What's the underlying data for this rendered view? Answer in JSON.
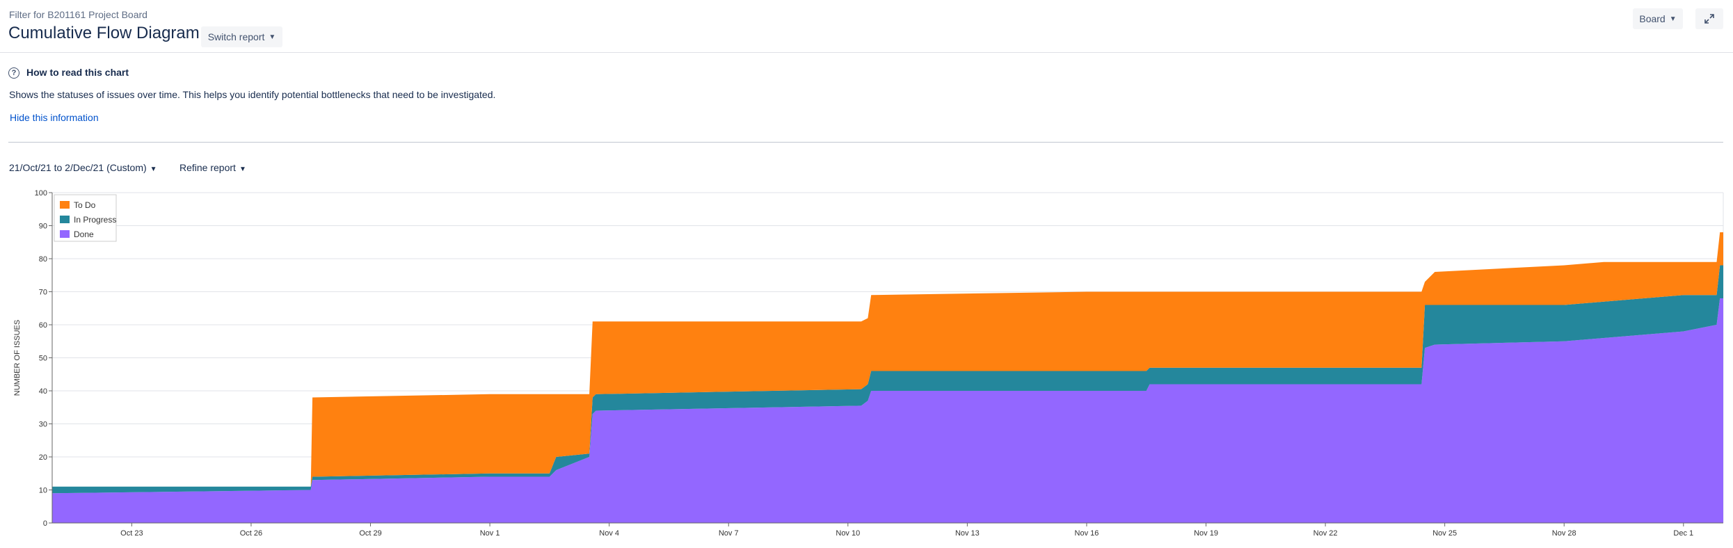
{
  "header": {
    "subtitle": "Filter for B201161 Project Board",
    "title": "Cumulative Flow Diagram",
    "switch_report": "Switch report",
    "board": "Board"
  },
  "info": {
    "heading": "How to read this chart",
    "description": "Shows the statuses of issues over time. This helps you identify potential bottlenecks that need to be investigated.",
    "hide_link": "Hide this information"
  },
  "filters": {
    "date_range": "21/Oct/21 to 2/Dec/21 (Custom)",
    "refine": "Refine report"
  },
  "icons": {
    "help": "help-icon",
    "expand": "expand-icon",
    "chevron": "chevron-down-icon"
  },
  "chart_data": {
    "type": "area",
    "stacked": true,
    "ylabel": "NUMBER OF ISSUES",
    "xlabel": "",
    "ylim": [
      0,
      100
    ],
    "yticks": [
      0,
      10,
      20,
      30,
      40,
      50,
      60,
      70,
      80,
      90,
      100
    ],
    "xlim": [
      "2021-10-21",
      "2021-12-02"
    ],
    "xticks": [
      "Oct 23",
      "Oct 26",
      "Oct 29",
      "Nov 1",
      "Nov 4",
      "Nov 7",
      "Nov 10",
      "Nov 13",
      "Nov 16",
      "Nov 19",
      "Nov 22",
      "Nov 25",
      "Nov 28",
      "Dec 1"
    ],
    "xtick_dates": [
      "2021-10-23",
      "2021-10-26",
      "2021-10-29",
      "2021-11-01",
      "2021-11-04",
      "2021-11-07",
      "2021-11-10",
      "2021-11-13",
      "2021-11-16",
      "2021-11-19",
      "2021-11-22",
      "2021-11-25",
      "2021-11-28",
      "2021-12-01"
    ],
    "grid": true,
    "legend_position": "top-left",
    "x": [
      "2021-10-21",
      "2021-10-27 12:00",
      "2021-10-27 13:00",
      "2021-11-01",
      "2021-11-02 12:00",
      "2021-11-02 16:00",
      "2021-11-03 12:00",
      "2021-11-03 14:00",
      "2021-11-03 16:00",
      "2021-11-10 08:00",
      "2021-11-10 12:00",
      "2021-11-10 14:00",
      "2021-11-16",
      "2021-11-17 12:00",
      "2021-11-17 14:00",
      "2021-11-24 10:00",
      "2021-11-24 12:00",
      "2021-11-24 18:00",
      "2021-11-28",
      "2021-11-29",
      "2021-11-30",
      "2021-12-01",
      "2021-12-01 20:00",
      "2021-12-01 22:00",
      "2021-12-02"
    ],
    "series": [
      {
        "name": "Done",
        "color": "#9367ff",
        "values": [
          9,
          10,
          13,
          14,
          14,
          16,
          20,
          33,
          34,
          35.5,
          37,
          40,
          40,
          40,
          42,
          42,
          53,
          54,
          55,
          56,
          57,
          58,
          60,
          68,
          68
        ]
      },
      {
        "name": "In Progress",
        "color": "#24879c",
        "values": [
          2,
          1,
          1,
          1,
          1,
          4,
          1,
          5,
          5,
          5,
          5,
          6,
          6,
          6,
          5,
          5,
          13,
          12,
          11,
          11,
          11,
          11,
          9,
          10,
          10
        ]
      },
      {
        "name": "To Do",
        "color": "#ff8110",
        "values": [
          0,
          0,
          24,
          24,
          24,
          19,
          18,
          23,
          22,
          20.5,
          20,
          23,
          24,
          24,
          23,
          23,
          7,
          10,
          12,
          12,
          11,
          10,
          10,
          10,
          10
        ]
      }
    ]
  }
}
